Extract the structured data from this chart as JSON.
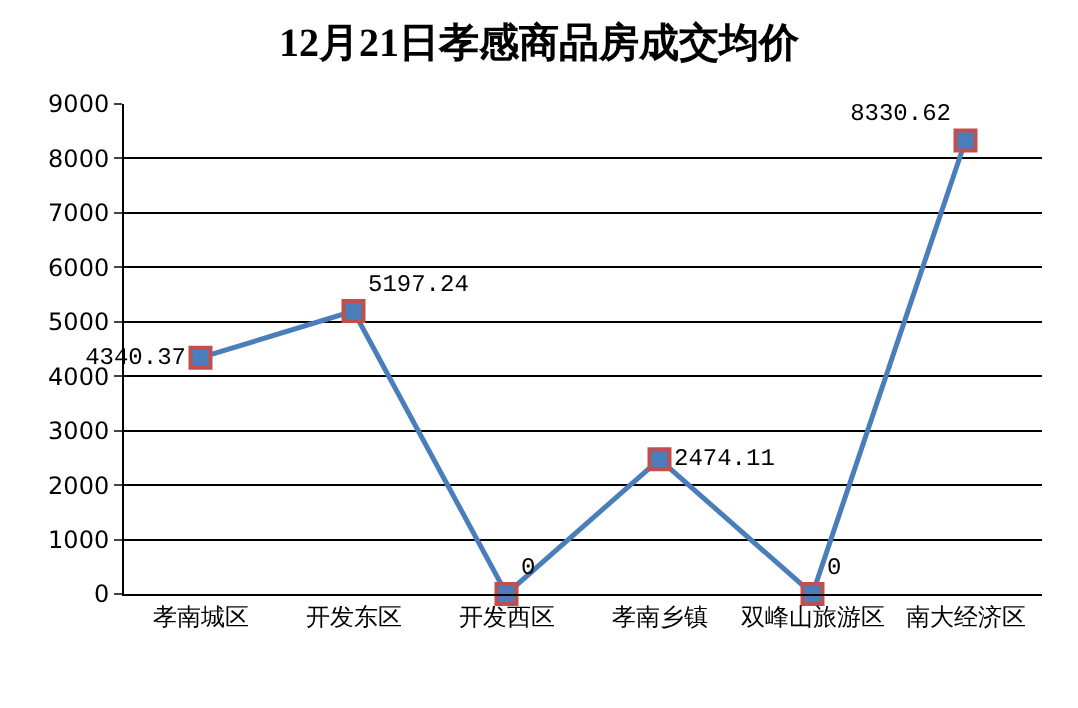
{
  "chart_data": {
    "type": "line",
    "title": "12月21日孝感商品房成交均价",
    "categories": [
      "孝南城区",
      "开发东区",
      "开发西区",
      "孝南乡镇",
      "双峰山旅游区",
      "南大经济区"
    ],
    "series": [
      {
        "color": "#4a7ebb",
        "values": [
          4340.37,
          5197.24,
          0,
          2474.11,
          0,
          8330.62
        ]
      }
    ],
    "ylim": [
      0,
      9000
    ],
    "yticks": [
      0,
      1000,
      2000,
      3000,
      4000,
      5000,
      6000,
      7000,
      8000,
      9000
    ],
    "grid": "y",
    "marker": "square",
    "line_style": "solid",
    "data_labels": true
  }
}
